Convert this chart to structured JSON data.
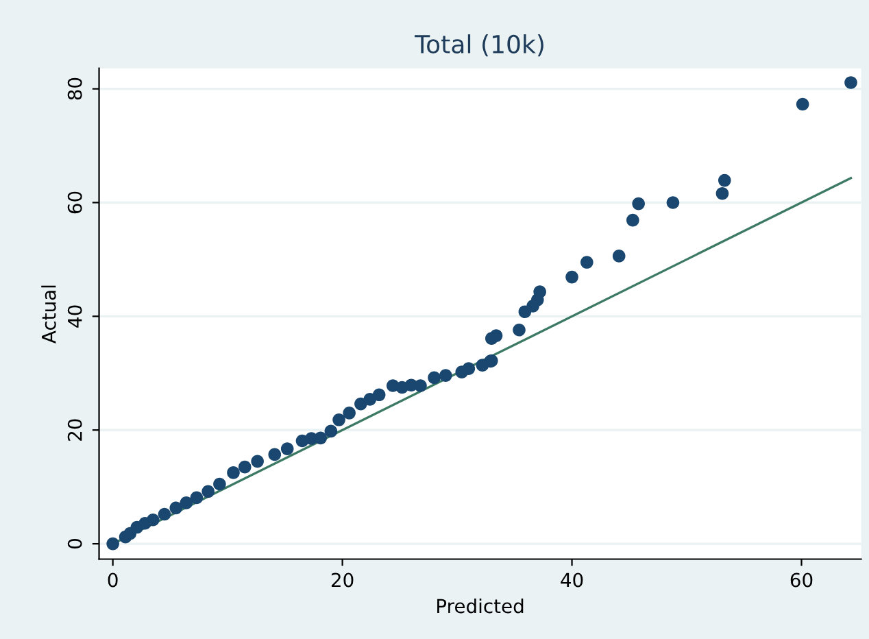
{
  "chart_data": {
    "type": "scatter",
    "title": "Total (10k)",
    "xlabel": "Predicted",
    "ylabel": "Actual",
    "xlim": [
      -1.2,
      65.2
    ],
    "ylim": [
      -2.7,
      83.6
    ],
    "xticks": [
      0,
      20,
      40,
      60
    ],
    "yticks": [
      0,
      20,
      40,
      60,
      80
    ],
    "grid": "y",
    "marker": "circle",
    "series": [
      {
        "color": "#1a476f",
        "x": [
          0.0,
          1.1,
          1.5,
          2.1,
          2.8,
          3.5,
          4.5,
          5.5,
          6.4,
          7.3,
          8.3,
          9.3,
          10.5,
          11.5,
          12.6,
          14.1,
          15.2,
          16.5,
          17.3,
          18.1,
          19.0,
          19.7,
          20.6,
          21.6,
          22.4,
          23.2,
          24.4,
          25.2,
          26.0,
          26.8,
          28.0,
          29.0,
          30.4,
          31.0,
          32.2,
          32.9,
          33.0,
          33.0,
          33.4,
          35.4,
          35.9,
          36.6,
          37.0,
          37.2,
          40.0,
          41.3,
          44.1,
          45.3,
          45.8,
          48.8,
          53.1,
          53.3,
          60.1,
          64.3
        ],
        "values": [
          0.0,
          1.2,
          1.8,
          2.9,
          3.6,
          4.2,
          5.2,
          6.3,
          7.2,
          8.1,
          9.2,
          10.5,
          12.5,
          13.5,
          14.5,
          15.7,
          16.7,
          18.1,
          18.5,
          18.6,
          19.8,
          21.8,
          23.0,
          24.6,
          25.4,
          26.2,
          27.8,
          27.5,
          27.9,
          27.8,
          29.2,
          29.6,
          30.2,
          30.8,
          31.4,
          32.1,
          32.2,
          36.1,
          36.6,
          37.6,
          40.8,
          41.8,
          42.9,
          44.3,
          46.9,
          49.5,
          50.6,
          56.9,
          59.8,
          60.0,
          61.6,
          63.9,
          77.3,
          81.1
        ]
      },
      {
        "type": "line",
        "color": "#3c7a64",
        "x": [
          0.2,
          64.3
        ],
        "values": [
          0.2,
          64.3
        ],
        "marker": "none"
      }
    ]
  }
}
